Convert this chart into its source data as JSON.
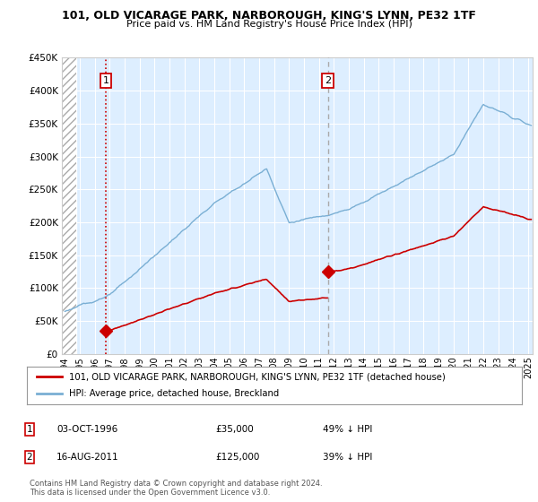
{
  "title": "101, OLD VICARAGE PARK, NARBOROUGH, KING'S LYNN, PE32 1TF",
  "subtitle": "Price paid vs. HM Land Registry's House Price Index (HPI)",
  "legend_line1": "101, OLD VICARAGE PARK, NARBOROUGH, KING'S LYNN, PE32 1TF (detached house)",
  "legend_line2": "HPI: Average price, detached house, Breckland",
  "annotation1_date": "03-OCT-1996",
  "annotation1_price": "£35,000",
  "annotation1_pct": "49% ↓ HPI",
  "annotation2_date": "16-AUG-2011",
  "annotation2_price": "£125,000",
  "annotation2_pct": "39% ↓ HPI",
  "footer": "Contains HM Land Registry data © Crown copyright and database right 2024.\nThis data is licensed under the Open Government Licence v3.0.",
  "price_color": "#cc0000",
  "hpi_color": "#7aafd4",
  "bg_color": "#ddeeff",
  "annotation1_vline_color": "#cc0000",
  "annotation2_vline_color": "#aaaaaa",
  "ylim": [
    0,
    450000
  ],
  "yticks": [
    0,
    50000,
    100000,
    150000,
    200000,
    250000,
    300000,
    350000,
    400000,
    450000
  ],
  "sale1_year": 1996.75,
  "sale1_price": 35000,
  "sale2_year": 2011.6,
  "sale2_price": 125000,
  "xmin": 1993.8,
  "xmax": 2025.3,
  "hatch_end": 1994.75
}
